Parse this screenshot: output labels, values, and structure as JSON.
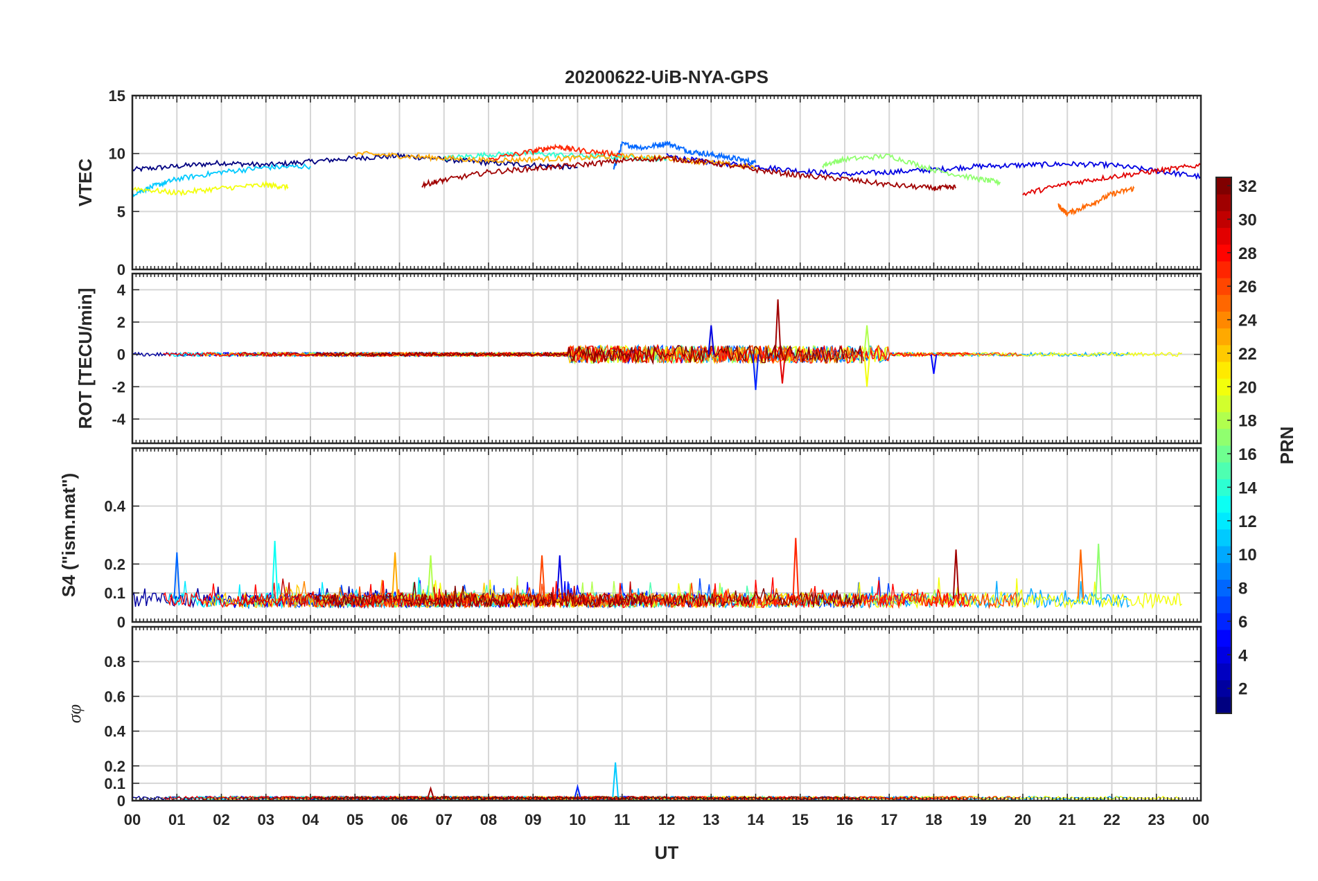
{
  "chart_data": {
    "type": "line",
    "title": "20200622-UiB-NYA-GPS",
    "xlabel": "UT",
    "x_ticks": [
      "00",
      "01",
      "02",
      "03",
      "04",
      "05",
      "06",
      "07",
      "08",
      "09",
      "10",
      "11",
      "12",
      "13",
      "14",
      "15",
      "16",
      "17",
      "18",
      "19",
      "20",
      "21",
      "22",
      "23",
      "00"
    ],
    "xlim": [
      0,
      24
    ],
    "grid": true,
    "colorbar": {
      "label": "PRN",
      "range": [
        1,
        32
      ],
      "ticks": [
        "2",
        "4",
        "6",
        "8",
        "10",
        "12",
        "14",
        "16",
        "18",
        "20",
        "22",
        "24",
        "26",
        "28",
        "30",
        "32"
      ],
      "colormap": "jet"
    },
    "panels": [
      {
        "id": "vtec",
        "ylabel": "VTEC",
        "ylim": [
          0,
          15
        ],
        "yticks": [
          "0",
          "5",
          "10",
          "15"
        ],
        "description_series": [
          {
            "prn": 1,
            "x": [
              0,
              1,
              2,
              3,
              4,
              5,
              6,
              7,
              8,
              9,
              10
            ],
            "y": [
              8.6,
              8.9,
              9.2,
              9.0,
              9.3,
              9.6,
              9.8,
              9.5,
              9.2,
              9.0,
              8.8
            ]
          },
          {
            "prn": 4,
            "x": [
              12,
              13,
              14,
              15,
              16,
              17,
              18,
              19,
              20,
              21,
              22,
              23,
              24
            ],
            "y": [
              9.8,
              9.2,
              8.9,
              8.5,
              8.2,
              8.4,
              8.6,
              8.9,
              9.0,
              9.1,
              9.0,
              8.5,
              8.0
            ]
          },
          {
            "prn": 8,
            "x": [
              10.8,
              11,
              11.5,
              12,
              12.5,
              13,
              13.5,
              14
            ],
            "y": [
              8.5,
              10.8,
              10.5,
              10.9,
              10.2,
              9.9,
              9.6,
              9.2
            ]
          },
          {
            "prn": 11,
            "x": [
              0,
              0.5,
              1,
              2,
              3,
              4
            ],
            "y": [
              6.5,
              7.2,
              7.8,
              8.4,
              8.8,
              8.9
            ]
          },
          {
            "prn": 14,
            "x": [
              7,
              8,
              9,
              10,
              11,
              12
            ],
            "y": [
              9.6,
              9.9,
              10.0,
              9.8,
              9.7,
              9.5
            ]
          },
          {
            "prn": 17,
            "x": [
              15.5,
              16,
              17,
              18,
              19,
              19.5
            ],
            "y": [
              9.0,
              9.5,
              9.8,
              8.6,
              7.8,
              7.5
            ]
          },
          {
            "prn": 20,
            "x": [
              0,
              1,
              2,
              3,
              3.5
            ],
            "y": [
              7.0,
              6.6,
              7.0,
              7.3,
              7.1
            ]
          },
          {
            "prn": 23,
            "x": [
              5,
              6,
              7,
              8,
              9,
              10,
              11,
              12,
              13,
              14
            ],
            "y": [
              10.0,
              9.8,
              9.6,
              9.4,
              9.5,
              9.6,
              9.8,
              9.6,
              9.2,
              8.8
            ]
          },
          {
            "prn": 25,
            "x": [
              20.8,
              21,
              21.5,
              22,
              22.5
            ],
            "y": [
              5.5,
              4.8,
              5.6,
              6.5,
              7.0
            ]
          },
          {
            "prn": 27,
            "x": [
              8,
              9,
              9.5,
              10,
              11
            ],
            "y": [
              9.5,
              10.2,
              10.6,
              10.3,
              9.9
            ]
          },
          {
            "prn": 29,
            "x": [
              20,
              21,
              22,
              23,
              24
            ],
            "y": [
              6.5,
              7.4,
              8.0,
              8.5,
              9.0
            ]
          },
          {
            "prn": 31,
            "x": [
              6.5,
              7,
              8,
              9,
              10,
              11,
              12,
              13,
              14,
              15,
              16,
              17,
              18,
              18.5
            ],
            "y": [
              7.3,
              7.7,
              8.4,
              8.7,
              9.0,
              9.4,
              9.6,
              9.2,
              8.6,
              8.1,
              7.8,
              7.3,
              7.0,
              7.1
            ]
          }
        ]
      },
      {
        "id": "rot",
        "ylabel": "ROT [TECU/min]",
        "ylim": [
          -5.5,
          5
        ],
        "yticks": [
          "-4",
          "-2",
          "0",
          "2",
          "4"
        ],
        "peak_events": [
          {
            "x": 14.5,
            "y": 3.4,
            "prn": 31
          },
          {
            "x": 14.0,
            "y": -2.2,
            "prn": 6
          },
          {
            "x": 14.6,
            "y": -1.8,
            "prn": 29
          },
          {
            "x": 16.5,
            "y": -2.0,
            "prn": 20
          },
          {
            "x": 16.5,
            "y": 1.8,
            "prn": 18
          },
          {
            "x": 13.0,
            "y": 1.8,
            "prn": 4
          },
          {
            "x": 18.0,
            "y": -1.2,
            "prn": 5
          }
        ]
      },
      {
        "id": "s4",
        "ylabel": "S4 (\"ism.mat\")",
        "ylim": [
          0,
          0.6
        ],
        "yticks": [
          "0",
          "0.1",
          "0.2",
          "0.4"
        ],
        "peak_events": [
          {
            "x": 1.0,
            "y": 0.24,
            "prn": 8
          },
          {
            "x": 3.2,
            "y": 0.28,
            "prn": 13
          },
          {
            "x": 5.9,
            "y": 0.24,
            "prn": 23
          },
          {
            "x": 6.7,
            "y": 0.23,
            "prn": 18
          },
          {
            "x": 9.2,
            "y": 0.23,
            "prn": 26
          },
          {
            "x": 9.6,
            "y": 0.23,
            "prn": 4
          },
          {
            "x": 14.9,
            "y": 0.29,
            "prn": 27
          },
          {
            "x": 18.5,
            "y": 0.25,
            "prn": 31
          },
          {
            "x": 21.3,
            "y": 0.25,
            "prn": 25
          },
          {
            "x": 21.7,
            "y": 0.27,
            "prn": 17
          }
        ]
      },
      {
        "id": "sigphi",
        "ylabel": "σφ",
        "ylim": [
          0,
          1
        ],
        "yticks": [
          "0",
          "0.1",
          "0.2",
          "0.4",
          "0.6",
          "0.8"
        ],
        "peak_events": [
          {
            "x": 10.85,
            "y": 0.22,
            "prn": 11
          },
          {
            "x": 10.0,
            "y": 0.08,
            "prn": 6
          },
          {
            "x": 6.7,
            "y": 0.07,
            "prn": 31
          }
        ]
      }
    ]
  }
}
